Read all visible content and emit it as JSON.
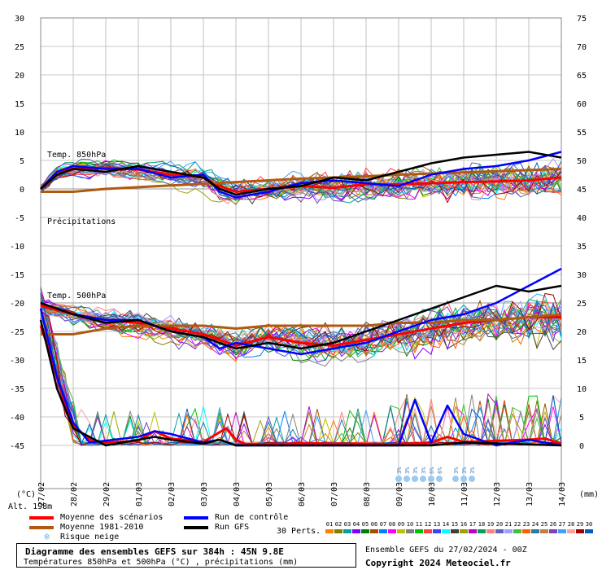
{
  "chart_data": {
    "type": "line",
    "x_dates": [
      "27/02",
      "28/02",
      "29/02",
      "01/03",
      "02/03",
      "03/03",
      "04/03",
      "05/03",
      "06/03",
      "07/03",
      "08/03",
      "09/03",
      "10/03",
      "11/03",
      "12/03",
      "13/03",
      "14/03"
    ],
    "left_axis": {
      "label": "(°C)",
      "ticks": [
        30,
        25,
        20,
        15,
        10,
        5,
        0,
        -5,
        -10,
        -15,
        -20,
        -25,
        -30,
        -35,
        -40,
        -45
      ]
    },
    "right_axis": {
      "label": "(mm)",
      "ticks": [
        75,
        70,
        65,
        60,
        55,
        50,
        45,
        40,
        35,
        30,
        25,
        20,
        15,
        10,
        5,
        0
      ]
    },
    "annotations": {
      "t850": "Temp. 850hPa",
      "precip": "Précipitations",
      "t500": "Temp. 500hPa"
    },
    "snow_label": "3%",
    "snow_marks": [
      {
        "day": 12.0,
        "label": "3%"
      },
      {
        "day": 12.25,
        "label": "3%"
      },
      {
        "day": 12.5,
        "label": "3%"
      },
      {
        "day": 12.75,
        "label": "3%"
      },
      {
        "day": 13.0,
        "label": "6%"
      },
      {
        "day": 13.25,
        "label": "6%"
      },
      {
        "day": 13.75,
        "label": "3%"
      },
      {
        "day": 14.0,
        "label": "3%"
      },
      {
        "day": 14.25,
        "label": "3%"
      }
    ],
    "series": [
      {
        "name": "Moyenne des scénarios",
        "color": "#ff0000",
        "kind": "t850",
        "values": [
          [
            0,
            0
          ],
          [
            0.5,
            3
          ],
          [
            1,
            3.5
          ],
          [
            2,
            3.7
          ],
          [
            3,
            3.4
          ],
          [
            4,
            2.5
          ],
          [
            5,
            2
          ],
          [
            5.5,
            0.5
          ],
          [
            6,
            -0.5
          ],
          [
            7,
            0
          ],
          [
            8,
            0.5
          ],
          [
            9,
            0.2
          ],
          [
            10,
            0.8
          ],
          [
            11,
            0.8
          ],
          [
            12,
            1
          ],
          [
            13,
            1.2
          ],
          [
            14,
            1.3
          ],
          [
            15,
            1.5
          ],
          [
            16,
            2
          ]
        ]
      },
      {
        "name": "Moyenne 1981-2010",
        "color": "#b05a10",
        "kind": "t850",
        "values": [
          [
            0,
            -0.5
          ],
          [
            1,
            -0.5
          ],
          [
            2,
            0
          ],
          [
            3,
            0.3
          ],
          [
            4,
            0.6
          ],
          [
            5,
            0.9
          ],
          [
            6,
            1.2
          ],
          [
            7,
            1.5
          ],
          [
            8,
            1.8
          ],
          [
            9,
            2
          ],
          [
            10,
            2.2
          ],
          [
            11,
            2.5
          ],
          [
            12,
            2.7
          ],
          [
            13,
            2.9
          ],
          [
            14,
            3.1
          ],
          [
            15,
            3.3
          ],
          [
            16,
            3.5
          ]
        ]
      },
      {
        "name": "Run de contrôle",
        "color": "#0000ff",
        "kind": "t850",
        "values": [
          [
            0,
            0
          ],
          [
            0.5,
            3
          ],
          [
            1,
            4
          ],
          [
            2,
            3.5
          ],
          [
            3,
            3.5
          ],
          [
            4,
            2
          ],
          [
            5,
            2.5
          ],
          [
            5.5,
            -0.5
          ],
          [
            6,
            -1.5
          ],
          [
            7,
            -0.5
          ],
          [
            8,
            1
          ],
          [
            9,
            1.5
          ],
          [
            10,
            1
          ],
          [
            11,
            0.5
          ],
          [
            12,
            2.5
          ],
          [
            13,
            3.5
          ],
          [
            14,
            4
          ],
          [
            15,
            5
          ],
          [
            16,
            6.5
          ]
        ]
      },
      {
        "name": "Run GFS",
        "color": "#000000",
        "kind": "t850",
        "values": [
          [
            0,
            0
          ],
          [
            0.5,
            2.5
          ],
          [
            1,
            3.5
          ],
          [
            2,
            3
          ],
          [
            3,
            4
          ],
          [
            4,
            3
          ],
          [
            5,
            2
          ],
          [
            5.5,
            0
          ],
          [
            6,
            -1
          ],
          [
            7,
            0
          ],
          [
            8,
            0.5
          ],
          [
            9,
            2
          ],
          [
            10,
            1.5
          ],
          [
            11,
            3
          ],
          [
            12,
            4.5
          ],
          [
            13,
            5.5
          ],
          [
            14,
            6
          ],
          [
            15,
            6.5
          ],
          [
            16,
            5.5
          ]
        ]
      },
      {
        "name": "Moyenne des scénarios",
        "color": "#ff0000",
        "kind": "t500",
        "values": [
          [
            0,
            -20.5
          ],
          [
            1,
            -22
          ],
          [
            2,
            -23
          ],
          [
            3,
            -23.5
          ],
          [
            4,
            -24.5
          ],
          [
            5,
            -25.5
          ],
          [
            5.5,
            -26.5
          ],
          [
            6,
            -27.5
          ],
          [
            7,
            -26
          ],
          [
            8,
            -27
          ],
          [
            9,
            -27.5
          ],
          [
            10,
            -26.5
          ],
          [
            11,
            -25.5
          ],
          [
            12,
            -24.5
          ],
          [
            13,
            -23.5
          ],
          [
            14,
            -23
          ],
          [
            15,
            -22.5
          ],
          [
            16,
            -22.5
          ]
        ]
      },
      {
        "name": "Moyenne 1981-2010",
        "color": "#b05a10",
        "kind": "t500",
        "values": [
          [
            0,
            -25.5
          ],
          [
            1,
            -25.5
          ],
          [
            2,
            -24.5
          ],
          [
            3,
            -24
          ],
          [
            4,
            -24
          ],
          [
            5,
            -24
          ],
          [
            6,
            -24.5
          ],
          [
            7,
            -24
          ],
          [
            8,
            -24
          ],
          [
            9,
            -24
          ],
          [
            10,
            -24
          ],
          [
            11,
            -23.5
          ],
          [
            12,
            -23.5
          ],
          [
            13,
            -23
          ],
          [
            14,
            -23
          ],
          [
            15,
            -22.5
          ],
          [
            16,
            -22
          ]
        ]
      },
      {
        "name": "Run de contrôle",
        "color": "#0000ff",
        "kind": "t500",
        "values": [
          [
            0,
            -20
          ],
          [
            1,
            -22
          ],
          [
            2,
            -23
          ],
          [
            3,
            -23
          ],
          [
            4,
            -25
          ],
          [
            5,
            -26
          ],
          [
            5.5,
            -28
          ],
          [
            6,
            -27
          ],
          [
            7,
            -28
          ],
          [
            8,
            -29
          ],
          [
            9,
            -28
          ],
          [
            10,
            -27
          ],
          [
            11,
            -25
          ],
          [
            12,
            -23
          ],
          [
            13,
            -22
          ],
          [
            14,
            -20
          ],
          [
            15,
            -17
          ],
          [
            16,
            -14
          ]
        ]
      },
      {
        "name": "Run GFS",
        "color": "#000000",
        "kind": "t500",
        "values": [
          [
            0,
            -20
          ],
          [
            1,
            -22
          ],
          [
            2,
            -23.5
          ],
          [
            3,
            -23
          ],
          [
            4,
            -25
          ],
          [
            5,
            -26
          ],
          [
            5.5,
            -27
          ],
          [
            6,
            -28
          ],
          [
            7,
            -27
          ],
          [
            8,
            -28
          ],
          [
            9,
            -27
          ],
          [
            10,
            -25
          ],
          [
            11,
            -23
          ],
          [
            12,
            -21
          ],
          [
            13,
            -19
          ],
          [
            14,
            -17
          ],
          [
            15,
            -18
          ],
          [
            16,
            -17
          ]
        ]
      },
      {
        "name": "Moyenne des scénarios",
        "color": "#ff0000",
        "kind": "precip",
        "values": [
          [
            0,
            21
          ],
          [
            0.3,
            16
          ],
          [
            0.7,
            8
          ],
          [
            1,
            3.5
          ],
          [
            1.5,
            1
          ],
          [
            2,
            0.5
          ],
          [
            3,
            0.8
          ],
          [
            3.5,
            2.5
          ],
          [
            4,
            1.2
          ],
          [
            5,
            0.6
          ],
          [
            5.7,
            3
          ],
          [
            6,
            1
          ],
          [
            6.3,
            0.2
          ],
          [
            7,
            0.2
          ],
          [
            8,
            0.4
          ],
          [
            9,
            0.3
          ],
          [
            10,
            0.3
          ],
          [
            11,
            0.2
          ],
          [
            12,
            0.5
          ],
          [
            12.5,
            1.5
          ],
          [
            13,
            0.6
          ],
          [
            14,
            0.8
          ],
          [
            15,
            1
          ],
          [
            15.5,
            1.2
          ],
          [
            16,
            0.3
          ]
        ]
      },
      {
        "name": "Run de contrôle",
        "color": "#0000ff",
        "kind": "precip",
        "values": [
          [
            0,
            24
          ],
          [
            0.5,
            12
          ],
          [
            1,
            4
          ],
          [
            1.5,
            0.5
          ],
          [
            3,
            1.5
          ],
          [
            3.5,
            2.5
          ],
          [
            4,
            2
          ],
          [
            5,
            0.5
          ],
          [
            5.5,
            1
          ],
          [
            6,
            0
          ],
          [
            8,
            0
          ],
          [
            11,
            0
          ],
          [
            11.5,
            8
          ],
          [
            12,
            0.5
          ],
          [
            12.5,
            7
          ],
          [
            13,
            2
          ],
          [
            14,
            0
          ],
          [
            15,
            1
          ],
          [
            16,
            0
          ]
        ]
      },
      {
        "name": "Run GFS",
        "color": "#000000",
        "kind": "precip",
        "values": [
          [
            0,
            22
          ],
          [
            0.5,
            10
          ],
          [
            1,
            3
          ],
          [
            2,
            0
          ],
          [
            3,
            1
          ],
          [
            3.5,
            1.5
          ],
          [
            4,
            1
          ],
          [
            5,
            0.3
          ],
          [
            5.5,
            1
          ],
          [
            6,
            0
          ],
          [
            9,
            0
          ],
          [
            12,
            0
          ],
          [
            13,
            0.5
          ],
          [
            16,
            0
          ]
        ]
      }
    ],
    "legend": [
      {
        "label": "Moyenne des scénarios",
        "color": "#ff0000"
      },
      {
        "label": "Run de contrôle",
        "color": "#0000ff"
      },
      {
        "label": "Moyenne 1981-2010",
        "color": "#b05a10"
      },
      {
        "label": "Run GFS",
        "color": "#000000"
      },
      {
        "label": "Risque neige",
        "color": "#7fb8e8"
      }
    ],
    "perturbation_labels": [
      "01",
      "02",
      "03",
      "04",
      "05",
      "06",
      "07",
      "08",
      "09",
      "10",
      "11",
      "12",
      "13",
      "14",
      "15",
      "16",
      "17",
      "18",
      "19",
      "20",
      "21",
      "22",
      "23",
      "24",
      "25",
      "26",
      "27",
      "28",
      "29",
      "30"
    ],
    "perturbation_colors": [
      "#ff8000",
      "#808000",
      "#00a0a0",
      "#8000ff",
      "#008000",
      "#a05000",
      "#0080ff",
      "#ff00ff",
      "#c0c000",
      "#808080",
      "#00c000",
      "#ff4040",
      "#4040ff",
      "#00ffff",
      "#404040",
      "#a0a000",
      "#c000c0",
      "#00a060",
      "#ff8080",
      "#6060c0",
      "#a0a0ff",
      "#40c040",
      "#ff6000",
      "#2080a0",
      "#c08040",
      "#8040c0",
      "#40a0ff",
      "#ffa0a0",
      "#a00000",
      "#0060c0"
    ]
  },
  "labels": {
    "alt": "Alt. 198m",
    "perts": "30 Perts.",
    "title": "Diagramme des ensembles GEFS sur 384h : 45N 9.8E",
    "subtitle": "Températures 850hPa et 500hPa (°C) , précipitations (mm)",
    "ensemble": "Ensemble GEFS du 27/02/2024 - 00Z",
    "copyright": "Copyright 2024 Meteociel.fr"
  }
}
